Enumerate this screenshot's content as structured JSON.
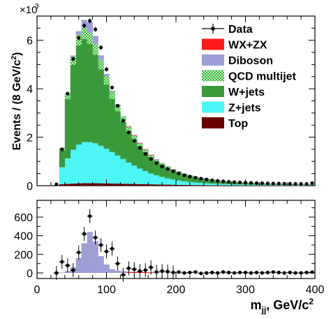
{
  "chart_data": [
    {
      "type": "bar",
      "stacked": true,
      "xlim": [
        0,
        400
      ],
      "ylim": [
        0,
        7000
      ],
      "y_tick_labels": [
        "0",
        "2",
        "4",
        "6"
      ],
      "y_multiplier_label": "×10",
      "y_multiplier_exponent": "3",
      "ylabel": "Events / (8 GeV/c",
      "ylabel_exponent": "2",
      "ylabel_tail": ")",
      "bin_width": 8,
      "bin_lows": [
        32,
        40,
        48,
        56,
        64,
        72,
        80,
        88,
        96,
        104,
        112,
        120,
        128,
        136,
        144,
        152,
        160,
        168,
        176,
        184,
        192,
        200,
        208,
        216,
        224,
        232,
        240,
        248,
        256,
        264,
        272,
        280,
        288,
        296,
        304,
        312,
        320,
        328,
        336,
        344,
        352,
        360,
        368,
        376,
        384,
        392
      ],
      "legend_position": "top-right",
      "legend": [
        {
          "label": "Data",
          "kind": "marker"
        },
        {
          "label": "WX+ZX",
          "kind": "box",
          "color": "#ff1a1a"
        },
        {
          "label": "Diboson",
          "kind": "box",
          "color": "#9f9fd8"
        },
        {
          "label": "QCD multijet",
          "kind": "hatch",
          "color": "#2ab52a"
        },
        {
          "label": "W+jets",
          "kind": "box",
          "color": "#3a9a3a"
        },
        {
          "label": "Z+jets",
          "kind": "box",
          "color": "#4df5f5"
        },
        {
          "label": "Top",
          "kind": "box",
          "color": "#6b0000"
        }
      ],
      "series": [
        {
          "name": "Top",
          "color": "#6b0000",
          "values": [
            60,
            75,
            85,
            95,
            100,
            100,
            100,
            98,
            95,
            90,
            85,
            80,
            75,
            70,
            65,
            60,
            55,
            50,
            46,
            42,
            38,
            34,
            30,
            27,
            24,
            22,
            20,
            18,
            16,
            15,
            14,
            13,
            12,
            11,
            10,
            10,
            9,
            9,
            8,
            8,
            7,
            7,
            6,
            6,
            6,
            6
          ]
        },
        {
          "name": "Z+jets",
          "color": "#4df5f5",
          "values": [
            700,
            1050,
            1400,
            1600,
            1700,
            1700,
            1650,
            1550,
            1430,
            1300,
            1160,
            1020,
            880,
            760,
            640,
            540,
            450,
            380,
            315,
            260,
            215,
            180,
            150,
            125,
            105,
            90,
            78,
            68,
            60,
            53,
            48,
            43,
            39,
            36,
            33,
            31,
            29,
            27,
            25,
            24,
            23,
            22,
            21,
            20,
            19,
            18
          ]
        },
        {
          "name": "W+jets",
          "color": "#3a9a3a",
          "values": [
            700,
            2450,
            3500,
            4100,
            4250,
            4050,
            3650,
            3150,
            2650,
            2200,
            1830,
            1530,
            1290,
            1090,
            920,
            790,
            680,
            590,
            515,
            450,
            395,
            345,
            300,
            262,
            230,
            202,
            178,
            158,
            140,
            124,
            110,
            98,
            88,
            79,
            71,
            64,
            58,
            53,
            49,
            45,
            42,
            39,
            37,
            35,
            33,
            32
          ]
        },
        {
          "name": "QCD multijet",
          "color": "#2ab52a",
          "values": [
            100,
            220,
            330,
            420,
            470,
            470,
            440,
            400,
            350,
            300,
            260,
            220,
            180,
            150,
            120,
            100,
            82,
            67,
            55,
            45,
            37,
            30,
            25,
            21,
            17,
            14,
            12,
            10,
            9,
            8,
            7,
            6,
            6,
            5,
            5,
            4,
            4,
            4,
            3,
            3,
            3,
            3,
            3,
            3,
            3,
            3
          ]
        },
        {
          "name": "Diboson",
          "color": "#9f9fd8",
          "values": [
            5,
            20,
            60,
            160,
            320,
            440,
            340,
            180,
            90,
            40,
            25,
            18,
            14,
            11,
            9,
            8,
            7,
            6,
            5,
            4,
            4,
            3,
            3,
            3,
            3,
            2,
            2,
            2,
            2,
            2,
            2,
            2,
            2,
            2,
            2,
            2,
            2,
            2,
            2,
            2,
            2,
            2,
            2,
            2,
            2,
            2
          ]
        },
        {
          "name": "WX+ZX",
          "color": "#ff1a1a",
          "values": [
            0,
            0,
            0,
            0,
            0,
            0,
            0,
            0,
            0,
            0,
            0,
            0,
            5,
            10,
            12,
            8,
            4,
            0,
            0,
            0,
            0,
            0,
            0,
            0,
            0,
            0,
            0,
            0,
            0,
            0,
            0,
            0,
            0,
            0,
            0,
            0,
            0,
            0,
            0,
            0,
            0,
            0,
            0,
            0,
            0,
            0
          ]
        }
      ],
      "data_points": {
        "name": "Data",
        "x": [
          28,
          36,
          44,
          52,
          60,
          68,
          76,
          84,
          92,
          100,
          108,
          116,
          124,
          132,
          140,
          148,
          156,
          164,
          172,
          180,
          188,
          196,
          204,
          212,
          220,
          228,
          236,
          244,
          252,
          260,
          268,
          276,
          284,
          292,
          300,
          308,
          316,
          324,
          332,
          340,
          348,
          356,
          364,
          372,
          380,
          388,
          396
        ],
        "y": [
          60,
          1500,
          3800,
          5230,
          6100,
          6600,
          6800,
          6450,
          5700,
          4800,
          4050,
          3300,
          2680,
          2200,
          1850,
          1560,
          1310,
          1100,
          930,
          790,
          690,
          590,
          505,
          430,
          375,
          330,
          290,
          255,
          225,
          200,
          180,
          162,
          148,
          135,
          124,
          115,
          108,
          102,
          96,
          92,
          88,
          84,
          80,
          77,
          75,
          74,
          110
        ]
      }
    },
    {
      "type": "bar",
      "xlim": [
        0,
        400
      ],
      "ylim": [
        -60,
        780
      ],
      "x_tick_labels": [
        "0",
        "100",
        "200",
        "300",
        "400"
      ],
      "y_tick_labels": [
        "0",
        "200",
        "400",
        "600"
      ],
      "xlabel": "m",
      "xlabel_subscript": "jj",
      "xlabel_tail": ", GeV/c",
      "xlabel_exponent": "2",
      "bin_width": 8,
      "series": [
        {
          "name": "Diboson",
          "color": "#9f9fd8",
          "bin_lows": [
            32,
            40,
            48,
            56,
            64,
            72,
            80,
            88,
            96,
            104,
            112,
            120,
            128,
            136,
            144,
            152,
            160,
            168,
            176,
            184,
            192,
            200,
            208,
            216,
            224,
            232,
            240,
            248,
            256,
            264,
            272,
            280,
            288,
            296,
            304,
            312,
            320,
            328,
            336,
            344,
            352,
            360,
            368,
            376,
            384,
            392
          ],
          "values": [
            5,
            20,
            60,
            160,
            320,
            440,
            340,
            180,
            90,
            40,
            25,
            18,
            14,
            11,
            9,
            8,
            7,
            6,
            5,
            4,
            4,
            3,
            3,
            3,
            3,
            2,
            2,
            2,
            2,
            2,
            2,
            2,
            2,
            2,
            2,
            2,
            2,
            2,
            2,
            2,
            2,
            2,
            2,
            2,
            2,
            2
          ]
        },
        {
          "name": "WX+ZX",
          "color": "#ff1a1a",
          "bin_lows": [
            128,
            136,
            144,
            152,
            160
          ],
          "values": [
            5,
            10,
            12,
            8,
            4
          ]
        }
      ],
      "data_points": {
        "name": "Data",
        "x": [
          28,
          36,
          44,
          52,
          60,
          68,
          76,
          84,
          92,
          100,
          108,
          116,
          124,
          132,
          140,
          148,
          156,
          164,
          172,
          180,
          188,
          196,
          204,
          212,
          220,
          228,
          236,
          244,
          252,
          260,
          268,
          276,
          284,
          292,
          300,
          308,
          316,
          324,
          332,
          340,
          348,
          356,
          364,
          372,
          380,
          388,
          396
        ],
        "y": [
          0,
          120,
          80,
          30,
          220,
          420,
          610,
          380,
          300,
          230,
          260,
          100,
          -20,
          50,
          40,
          20,
          30,
          60,
          10,
          20,
          15,
          5,
          10,
          0,
          5,
          10,
          -5,
          0,
          5,
          0,
          10,
          5,
          0,
          5,
          5,
          0,
          5,
          0,
          5,
          10,
          5,
          0,
          5,
          0,
          0,
          5,
          10
        ]
      }
    }
  ]
}
